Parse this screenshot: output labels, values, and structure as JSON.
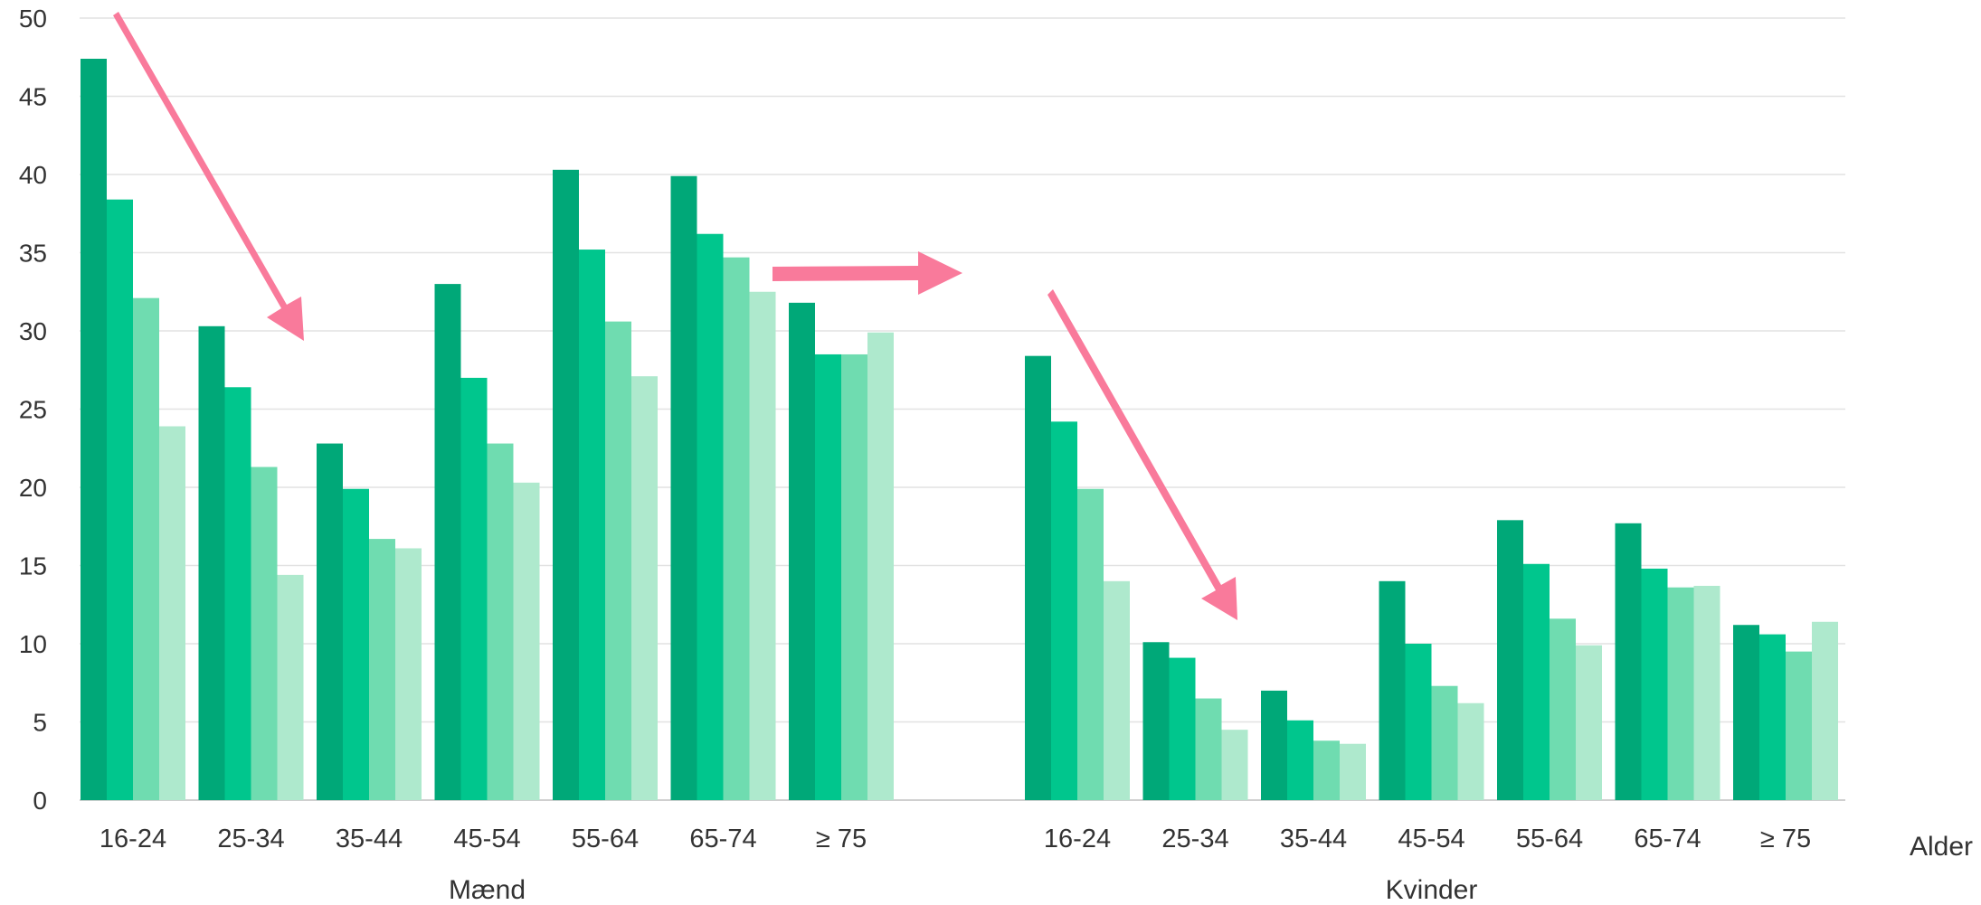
{
  "chart_data": {
    "type": "bar",
    "xlabel": "Alder",
    "ylabel": "",
    "ylim": [
      0,
      50
    ],
    "yticks": [
      0,
      5,
      10,
      15,
      20,
      25,
      30,
      35,
      40,
      45,
      50
    ],
    "grid": true,
    "groups": [
      {
        "label": "Mænd",
        "categories": [
          "16-24",
          "25-34",
          "35-44",
          "45-54",
          "55-64",
          "65-74",
          "≥ 75"
        ],
        "series": [
          {
            "values": [
              47.4,
              30.3,
              22.8,
              33.0,
              40.3,
              39.9,
              31.8
            ]
          },
          {
            "values": [
              38.4,
              26.4,
              19.9,
              27.0,
              35.2,
              36.2,
              28.5
            ]
          },
          {
            "values": [
              32.1,
              21.3,
              16.7,
              22.8,
              30.6,
              34.7,
              28.5
            ]
          },
          {
            "values": [
              23.9,
              14.4,
              16.1,
              20.3,
              27.1,
              32.5,
              29.9
            ]
          }
        ]
      },
      {
        "label": "Kvinder",
        "categories": [
          "16-24",
          "25-34",
          "35-44",
          "45-54",
          "55-64",
          "65-74",
          "≥ 75"
        ],
        "series": [
          {
            "values": [
              28.4,
              10.1,
              7.0,
              14.0,
              17.9,
              17.7,
              11.2
            ]
          },
          {
            "values": [
              24.2,
              9.1,
              5.1,
              10.0,
              15.1,
              14.8,
              10.6
            ]
          },
          {
            "values": [
              19.9,
              6.5,
              3.8,
              7.3,
              11.6,
              13.6,
              9.5
            ]
          },
          {
            "values": [
              14.0,
              4.5,
              3.6,
              6.2,
              9.9,
              13.7,
              11.4
            ]
          }
        ]
      }
    ],
    "series_colors": [
      "#00a878",
      "#00c68d",
      "#6fdcb0",
      "#aee9cd"
    ],
    "annotations": [
      {
        "type": "arrow",
        "description": "decreasing trend men 16-24 to 35-44",
        "color": "#f97a9b"
      },
      {
        "type": "arrow",
        "description": "horizontal arrow from men to women",
        "color": "#f97a9b"
      },
      {
        "type": "arrow",
        "description": "decreasing trend women 16-24 to 35-44",
        "color": "#f97a9b"
      }
    ]
  }
}
